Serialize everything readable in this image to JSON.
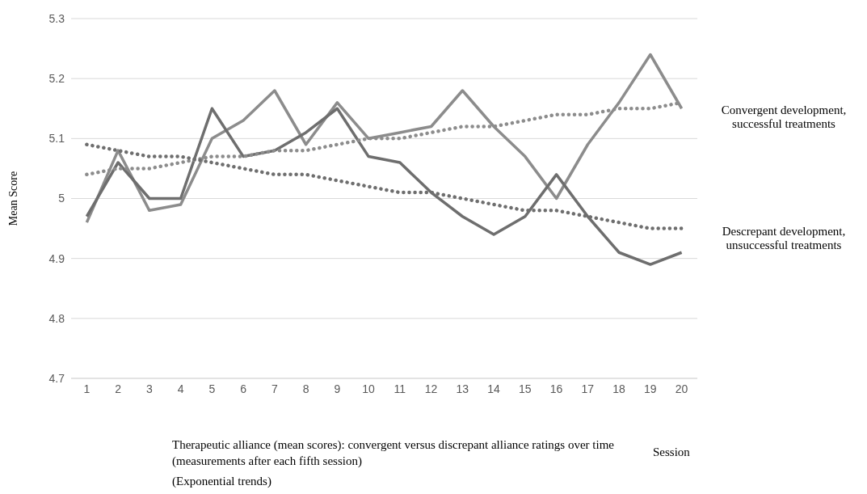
{
  "chart_data": {
    "type": "line",
    "ylabel": "Mean Score",
    "xlabel": "Session",
    "x": [
      1,
      2,
      3,
      4,
      5,
      6,
      7,
      8,
      9,
      10,
      11,
      12,
      13,
      14,
      15,
      16,
      17,
      18,
      19,
      20
    ],
    "xlim": [
      0.5,
      20.5
    ],
    "xticks": [
      1,
      2,
      3,
      4,
      5,
      6,
      7,
      8,
      9,
      10,
      11,
      12,
      13,
      14,
      15,
      16,
      17,
      18,
      19,
      20
    ],
    "ylim": [
      4.7,
      5.3
    ],
    "yticks": [
      4.7,
      4.8,
      4.9,
      5,
      5.1,
      5.2,
      5.3
    ],
    "grid": "y",
    "legend": "right",
    "marker": "none",
    "series": [
      {
        "name": "Convergent development, successful treatments",
        "color": "#8c8c8c",
        "line_style": "solid",
        "values": [
          4.96,
          5.08,
          4.98,
          4.99,
          5.1,
          5.13,
          5.18,
          5.09,
          5.16,
          5.1,
          5.11,
          5.12,
          5.18,
          5.12,
          5.07,
          5.0,
          5.09,
          5.16,
          5.24,
          5.15
        ]
      },
      {
        "name": "Descrepant development, unsuccessful treatments",
        "color": "#6e6e6e",
        "line_style": "solid",
        "values": [
          4.97,
          5.06,
          5.0,
          5.0,
          5.15,
          5.07,
          5.08,
          5.11,
          5.15,
          5.07,
          5.06,
          5.01,
          4.97,
          4.94,
          4.97,
          5.04,
          4.97,
          4.91,
          4.89,
          4.91
        ]
      },
      {
        "color": "#8c8c8c",
        "line_style": "dotted",
        "values": [
          5.04,
          5.05,
          5.05,
          5.06,
          5.07,
          5.07,
          5.08,
          5.08,
          5.09,
          5.1,
          5.1,
          5.11,
          5.12,
          5.12,
          5.13,
          5.14,
          5.14,
          5.15,
          5.15,
          5.16
        ]
      },
      {
        "color": "#6e6e6e",
        "line_style": "dotted",
        "values": [
          5.09,
          5.08,
          5.07,
          5.07,
          5.06,
          5.05,
          5.04,
          5.04,
          5.03,
          5.02,
          5.01,
          5.01,
          5.0,
          4.99,
          4.98,
          4.98,
          4.97,
          4.96,
          4.95,
          4.95
        ]
      }
    ],
    "annotations": [
      "Therapeutic alliance (mean scores): convergent versus discrepant alliance ratings over time (measurements after each fifth session)",
      "(Exponential trends)"
    ]
  }
}
